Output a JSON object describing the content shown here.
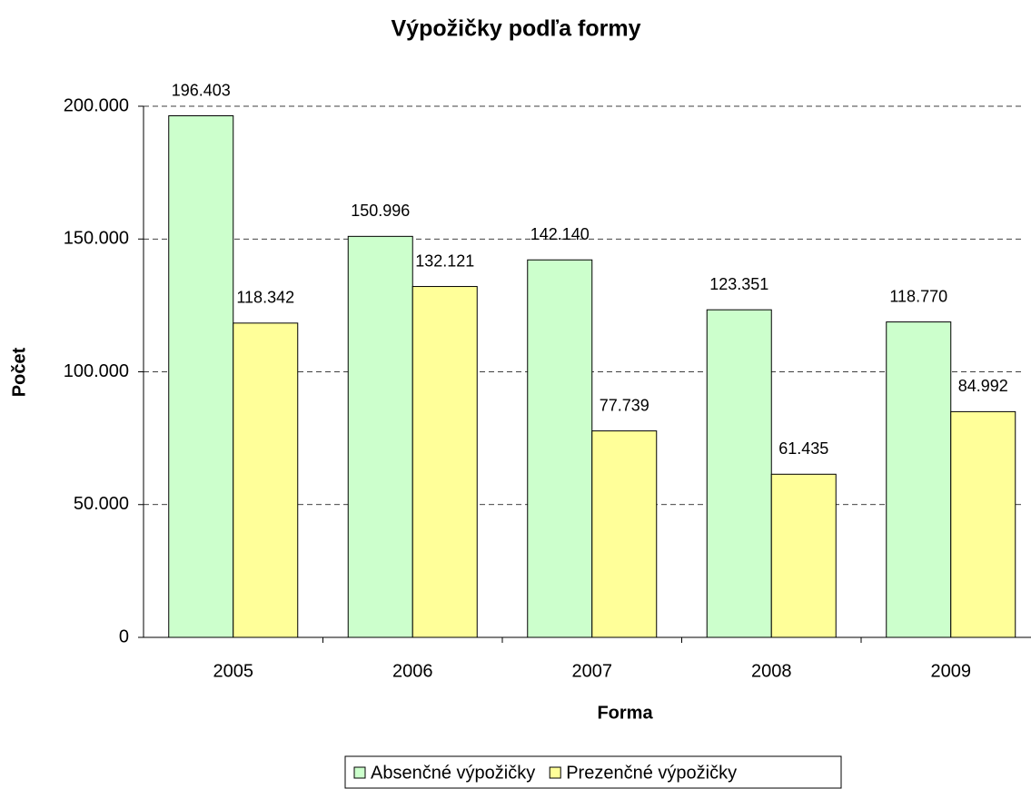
{
  "chart_data": {
    "type": "bar",
    "title": "Výpožičky podľa formy",
    "x_label": "Forma",
    "y_label": "Počet",
    "categories": [
      "2005",
      "2006",
      "2007",
      "2008",
      "2009"
    ],
    "series": [
      {
        "name": "Absenčné výpožičky",
        "color": "#ccffcc",
        "values": [
          196403,
          150996,
          142140,
          123351,
          118770
        ],
        "value_labels": [
          "196.403",
          "150.996",
          "142.140",
          "123.351",
          "118.770"
        ]
      },
      {
        "name": "Prezenčné výpožičky",
        "color": "#ffff99",
        "values": [
          118342,
          132121,
          77739,
          61435,
          84992
        ],
        "value_labels": [
          "118.342",
          "132.121",
          "77.739",
          "61.435",
          "84.992"
        ]
      }
    ],
    "ylim": [
      0,
      200000
    ],
    "yticks": [
      0,
      {
        "value": 50000,
        "label": "50.000"
      },
      {
        "value": 100000,
        "label": "100.000"
      },
      {
        "value": 150000,
        "label": "150.000"
      },
      {
        "value": 200000,
        "label": "200.000"
      }
    ],
    "grid": true,
    "legend": "bottom"
  }
}
